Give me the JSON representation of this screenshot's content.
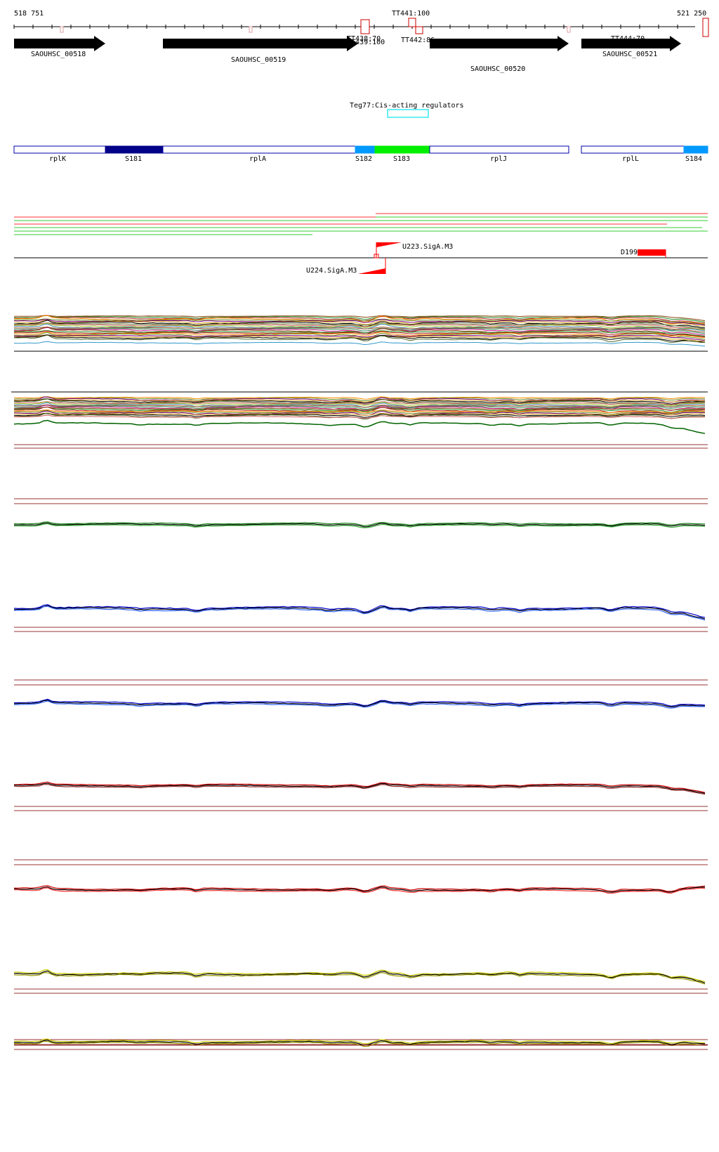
{
  "coords": {
    "start": "518 751",
    "end": "521 250"
  },
  "terminators": [
    {
      "label": "TT441:100"
    },
    {
      "label": "TT438:70"
    },
    {
      "label": "TT439:100"
    },
    {
      "label": "TT442:86"
    },
    {
      "label": "TT444:70"
    }
  ],
  "genes": [
    {
      "label": "SAOUHSC_00518"
    },
    {
      "label": "SAOUHSC_00519"
    },
    {
      "label": "SAOUHSC_00520"
    },
    {
      "label": "SAOUHSC_00521"
    }
  ],
  "regulator": {
    "label": "Teg77:Cis-acting regulators",
    "color": "#00e5ee"
  },
  "segments": [
    {
      "label": "rplK",
      "color": "#ffffff"
    },
    {
      "label": "S181",
      "color": "#000088"
    },
    {
      "label": "rplA",
      "color": "#ffffff"
    },
    {
      "label": "S182",
      "color": "#0099ff"
    },
    {
      "label": "S183",
      "color": "#00ee00"
    },
    {
      "label": "rplJ",
      "color": "#ffffff"
    },
    {
      "label": "rplL",
      "color": "#ffffff"
    },
    {
      "label": "S184",
      "color": "#0099ff"
    }
  ],
  "promoters": [
    {
      "label": "U223.SigA.M3"
    },
    {
      "label": "U224.SigA.M3"
    },
    {
      "label": "D199"
    }
  ],
  "palette": {
    "terminator": "#cc0000",
    "promoter": "#ff0000",
    "read_red": "#ff3333",
    "read_green": "#33cc33",
    "threshold": "#993333"
  }
}
